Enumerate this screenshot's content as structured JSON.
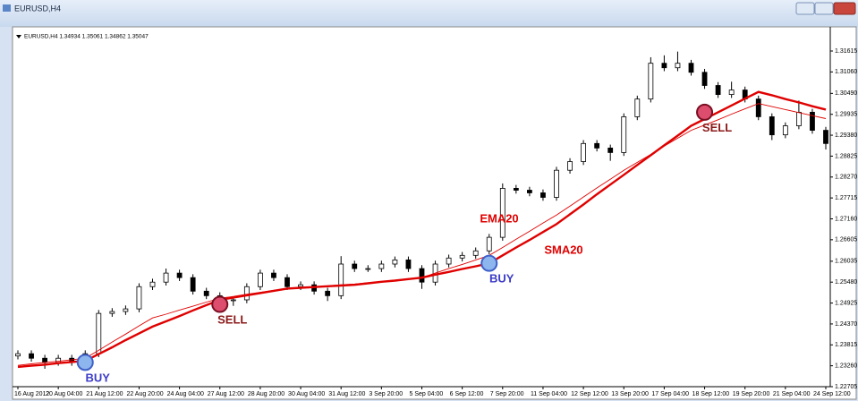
{
  "window_title": "EURUSD,H4",
  "chart_data": {
    "type": "candlestick",
    "info": "EURUSD,H4  1.34934 1.35061 1.34862 1.35047",
    "categories": [
      "16 Aug 2012",
      null,
      null,
      "20 Aug 04:00",
      null,
      null,
      "21 Aug 12:00",
      null,
      null,
      "22 Aug 20:00",
      null,
      null,
      "24 Aug 04:00",
      null,
      null,
      "27 Aug 12:00",
      null,
      null,
      "28 Aug 20:00",
      null,
      null,
      "30 Aug 04:00",
      null,
      null,
      "31 Aug 12:00",
      null,
      null,
      "3 Sep 20:00",
      null,
      null,
      "5 Sep 04:00",
      null,
      null,
      "6 Sep 12:00",
      null,
      null,
      "7 Sep 20:00",
      null,
      null,
      "11 Sep 04:00",
      null,
      null,
      "12 Sep 12:00",
      null,
      null,
      "13 Sep 20:00",
      null,
      null,
      "17 Sep 04:00",
      null,
      null,
      "18 Sep 12:00",
      null,
      null,
      "19 Sep 20:00",
      null,
      null,
      "21 Sep 04:00",
      null,
      null,
      "24 Sep 12:00"
    ],
    "open": [
      1.2352,
      1.2358,
      1.2346,
      1.2335,
      1.2346,
      1.2335,
      1.2358,
      1.2465,
      1.247,
      1.2477,
      1.2536,
      1.2548,
      1.2572,
      1.256,
      1.2524,
      1.2512,
      1.2501,
      1.2501,
      1.2536,
      1.2572,
      1.256,
      1.2536,
      1.2541,
      1.2524,
      1.2512,
      1.2596,
      1.2584,
      1.2584,
      1.2596,
      1.2607,
      1.2584,
      1.2548,
      1.2596,
      1.2612,
      1.2619,
      1.2631,
      1.2667,
      1.2797,
      1.2792,
      1.2785,
      1.2773,
      1.2845,
      1.2868,
      1.2916,
      1.2904,
      1.2892,
      1.2987,
      1.3034,
      1.3129,
      1.3117,
      1.3129,
      1.3105,
      1.307,
      1.3046,
      1.3058,
      1.3034,
      1.2987,
      1.2939,
      1.2963,
      1.2999,
      1.2951
    ],
    "high": [
      1.2367,
      1.2367,
      1.2355,
      1.2355,
      1.2355,
      1.2367,
      1.2474,
      1.2479,
      1.2486,
      1.2545,
      1.2557,
      1.2584,
      1.2581,
      1.2569,
      1.2533,
      1.2521,
      1.251,
      1.2545,
      1.2581,
      1.2581,
      1.2569,
      1.255,
      1.255,
      1.2533,
      1.2617,
      1.2605,
      1.2593,
      1.2605,
      1.2616,
      1.2616,
      1.2593,
      1.2605,
      1.2621,
      1.2628,
      1.264,
      1.2676,
      1.281,
      1.2806,
      1.2801,
      1.2794,
      1.2854,
      1.2877,
      1.2925,
      1.2925,
      1.2913,
      1.2996,
      1.3043,
      1.3145,
      1.315,
      1.316,
      1.3138,
      1.3114,
      1.3079,
      1.308,
      1.3067,
      1.3043,
      1.2996,
      1.2972,
      1.303,
      1.3008,
      1.296
    ],
    "low": [
      1.2343,
      1.2337,
      1.2318,
      1.2326,
      1.2326,
      1.2326,
      1.2349,
      1.2456,
      1.2461,
      1.2468,
      1.2527,
      1.2539,
      1.2551,
      1.2515,
      1.2503,
      1.249,
      1.2485,
      1.2492,
      1.2527,
      1.2551,
      1.2527,
      1.2527,
      1.2515,
      1.2498,
      1.2503,
      1.2575,
      1.2575,
      1.2575,
      1.2587,
      1.2575,
      1.253,
      1.2539,
      1.2587,
      1.2603,
      1.261,
      1.2622,
      1.2658,
      1.2783,
      1.2776,
      1.2764,
      1.2764,
      1.2836,
      1.2859,
      1.2895,
      1.287,
      1.2883,
      1.2978,
      1.3025,
      1.3108,
      1.3108,
      1.3096,
      1.3061,
      1.3037,
      1.3037,
      1.3025,
      1.2978,
      1.2925,
      1.293,
      1.2954,
      1.2942,
      1.29
    ],
    "close": [
      1.2358,
      1.2346,
      1.2335,
      1.2346,
      1.2335,
      1.2358,
      1.2465,
      1.247,
      1.2477,
      1.2536,
      1.2548,
      1.2572,
      1.256,
      1.2524,
      1.2512,
      1.2501,
      1.2501,
      1.2536,
      1.2572,
      1.256,
      1.2536,
      1.2541,
      1.2524,
      1.2512,
      1.2596,
      1.2584,
      1.2584,
      1.2596,
      1.2607,
      1.2584,
      1.2548,
      1.2596,
      1.2612,
      1.2619,
      1.2631,
      1.2667,
      1.2797,
      1.2792,
      1.2785,
      1.2773,
      1.2845,
      1.2868,
      1.2916,
      1.2904,
      1.2892,
      1.2987,
      1.3034,
      1.3129,
      1.3117,
      1.3129,
      1.3105,
      1.307,
      1.3046,
      1.3058,
      1.3034,
      1.2987,
      1.2939,
      1.2963,
      1.2999,
      1.2951,
      1.2916
    ],
    "up_color": "#ffffff",
    "down_color": "#000000",
    "lines": [
      {
        "name": "SMA20",
        "color": "#e00000",
        "width": 2.4,
        "values": [
          1.2323,
          1.2326,
          1.2329,
          1.2333,
          1.2336,
          1.2339,
          1.2357,
          1.2375,
          1.2394,
          1.2412,
          1.243,
          1.2444,
          1.2458,
          1.2473,
          1.2487,
          1.2501,
          1.2507,
          1.2513,
          1.2519,
          1.2525,
          1.2531,
          1.2533,
          1.2535,
          1.2537,
          1.2539,
          1.2541,
          1.2545,
          1.2549,
          1.2552,
          1.2556,
          1.256,
          1.2568,
          1.2575,
          1.2583,
          1.259,
          1.2598,
          1.2619,
          1.264,
          1.266,
          1.2681,
          1.2702,
          1.2728,
          1.2754,
          1.2781,
          1.2807,
          1.2833,
          1.2859,
          1.2885,
          1.2911,
          1.2937,
          1.2963,
          1.2981,
          1.2999,
          1.3017,
          1.3035,
          1.3053,
          1.3044,
          1.3034,
          1.3025,
          1.3015,
          1.3006
        ]
      },
      {
        "name": "EMA20",
        "color": "#e00000",
        "width": 0.9,
        "values": [
          1.2327,
          1.2331,
          1.2335,
          1.2338,
          1.2342,
          1.2346,
          1.2367,
          1.2389,
          1.241,
          1.2432,
          1.2453,
          1.2463,
          1.2474,
          1.2484,
          1.2495,
          1.2505,
          1.251,
          1.2516,
          1.2521,
          1.2526,
          1.2531,
          1.2533,
          1.2536,
          1.2538,
          1.2541,
          1.2543,
          1.2546,
          1.255,
          1.2553,
          1.2557,
          1.256,
          1.2572,
          1.2584,
          1.2595,
          1.2607,
          1.2619,
          1.264,
          1.2662,
          1.2683,
          1.2705,
          1.2726,
          1.275,
          1.2774,
          1.2798,
          1.2821,
          1.2845,
          1.2866,
          1.2887,
          1.2909,
          1.293,
          1.2951,
          1.2965,
          1.2979,
          1.2994,
          1.3008,
          1.3022,
          1.3014,
          1.3006,
          1.2998,
          1.299,
          1.2982
        ]
      }
    ],
    "annotations": [
      {
        "label": "BUY",
        "index": 5,
        "price": 1.2335,
        "color": "#3c3cc8",
        "fill": "#8db6ee",
        "stroke": "#3f5fc8"
      },
      {
        "label": "SELL",
        "index": 15,
        "price": 1.2489,
        "color": "#8b1a1a",
        "fill": "#dd4d6d",
        "stroke": "#7a0f22"
      },
      {
        "label": "BUY",
        "index": 35,
        "price": 1.2598,
        "color": "#3c3cc8",
        "fill": "#8db6ee",
        "stroke": "#3f5fc8"
      },
      {
        "label": "SELL",
        "index": 51,
        "price": 1.2999,
        "color": "#8b1a1a",
        "fill": "#dd4d6d",
        "stroke": "#7a0f22"
      }
    ],
    "ylim": [
      1.22705,
      1.3209
    ],
    "yticks": [
      1.31615,
      {
        "value": 1.3106,
        "label": "1.31060"
      },
      {
        "value": 1.3049,
        "label": "1.30490"
      },
      1.29935,
      {
        "value": 1.2938,
        "label": "1.29380"
      },
      1.28825,
      {
        "value": 1.2827,
        "label": "1.28270"
      },
      1.27715,
      {
        "value": 1.2716,
        "label": "1.27160"
      },
      1.26605,
      1.26035,
      {
        "value": 1.2548,
        "label": "1.25480"
      },
      1.24925,
      {
        "value": 1.2437,
        "label": "1.24370"
      },
      1.23815,
      {
        "value": 1.2326,
        "label": "1.23260"
      },
      1.22705
    ]
  }
}
